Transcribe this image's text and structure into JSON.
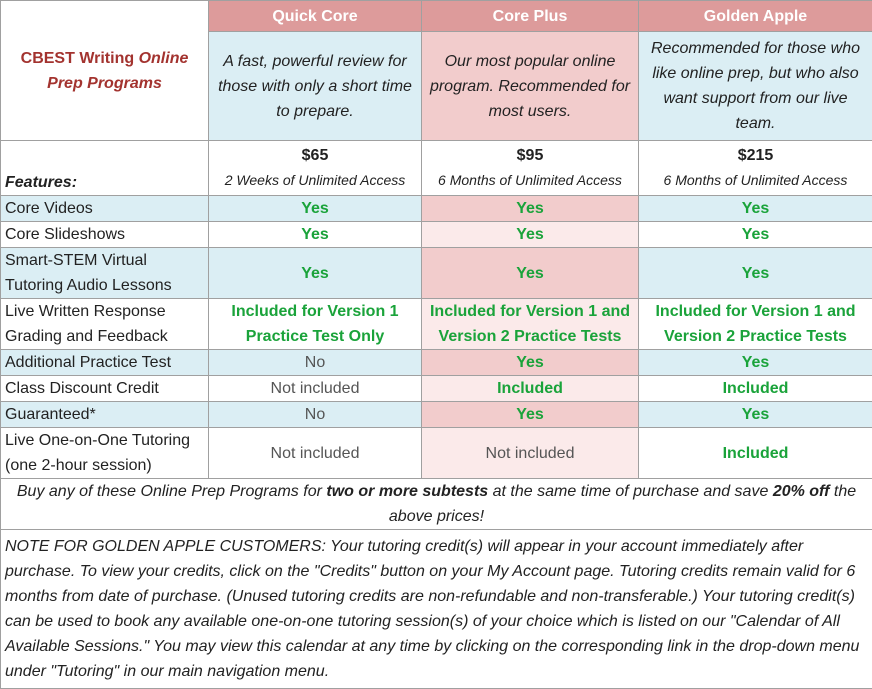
{
  "brand": {
    "line1": "CBEST Writing",
    "line1_italic": "Online",
    "line2": "Prep Programs"
  },
  "plans": [
    {
      "name": "Quick Core",
      "description": "A fast, powerful review for those with only a short time to prepare.",
      "price": "$65",
      "access": "2 Weeks of Unlimited Access"
    },
    {
      "name": "Core Plus",
      "description": "Our most popular online program.  Recommended for most users.",
      "price": "$95",
      "access": "6 Months of Unlimited Access"
    },
    {
      "name": "Golden Apple",
      "description": "Recommended for those who like online prep, but who also want support from our live team.",
      "price": "$215",
      "access": "6 Months of Unlimited Access"
    }
  ],
  "features_label": "Features:",
  "rows": [
    {
      "feature": "Core Videos",
      "values": [
        "Yes",
        "Yes",
        "Yes"
      ]
    },
    {
      "feature": "Core Slideshows",
      "values": [
        "Yes",
        "Yes",
        "Yes"
      ]
    },
    {
      "feature": "Smart-STEM Virtual Tutoring Audio Lessons",
      "values": [
        "Yes",
        "Yes",
        "Yes"
      ]
    },
    {
      "feature": "Live Written Response Grading and Feedback",
      "values": [
        "Included for Version 1 Practice Test Only",
        "Included for Version 1 and Version 2 Practice Tests",
        "Included for Version 1 and Version 2 Practice Tests"
      ]
    },
    {
      "feature": "Additional Practice Test",
      "values": [
        "No",
        "Yes",
        "Yes"
      ]
    },
    {
      "feature": "Class Discount Credit",
      "values": [
        "Not included",
        "Included",
        "Included"
      ]
    },
    {
      "feature": "Guaranteed*",
      "values": [
        "No",
        "Yes",
        "Yes"
      ]
    },
    {
      "feature": "Live One-on-One Tutoring (one 2-hour session)",
      "values": [
        "Not included",
        "Not included",
        "Included"
      ]
    }
  ],
  "buy": {
    "part1": "Buy any of these Online Prep Programs for",
    "bold1": "two or more subtests",
    "part2": "at the same time of purchase and save",
    "bold2": "20% off",
    "part3": "the above prices!"
  },
  "note": "NOTE FOR GOLDEN APPLE CUSTOMERS: Your tutoring credit(s) will appear in your account immediately after purchase.  To view your credits, click on the \"Credits\" button on your My Account page.  Tutoring credits remain valid for 6 months from date of purchase.  (Unused tutoring credits are non-refundable and non-transferable.)  Your tutoring credit(s) can be used to book any available one-on-one tutoring session(s) of your choice which is listed on our \"Calendar of All Available Sessions.\"  You may view this calendar at any time by clicking on the corresponding link in the drop-down menu under \"Tutoring\" in our main navigation menu.",
  "colors": {
    "header": "#dd9b9b",
    "brand": "#a3332f",
    "green": "#1aa33a",
    "blue": "#dbeef4",
    "pink": "#f2cccc",
    "light_pink": "#fbeaea"
  }
}
